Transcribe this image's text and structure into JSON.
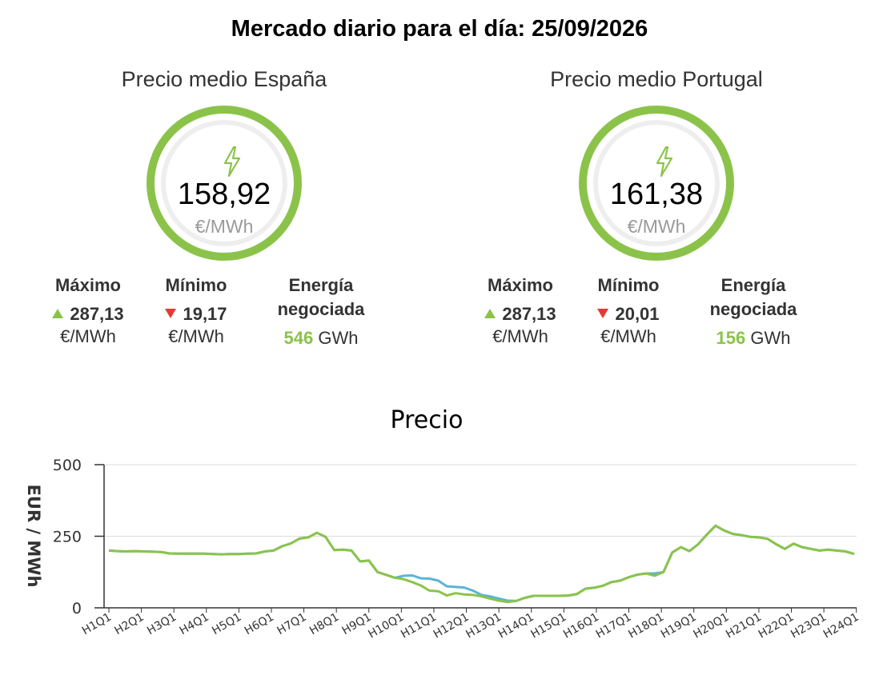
{
  "header": {
    "title": "Mercado diario para el día: 25/09/2026"
  },
  "spain": {
    "title": "Precio medio España",
    "price": "158,92",
    "unit": "€/MWh",
    "max_label": "Máximo",
    "max_value": "287,13",
    "max_unit": "€/MWh",
    "min_label": "Mínimo",
    "min_value": "19,17",
    "min_unit": "€/MWh",
    "energy_label": "Energía negociada",
    "energy_value": "546",
    "energy_unit": "GWh"
  },
  "portugal": {
    "title": "Precio medio Portugal",
    "price": "161,38",
    "unit": "€/MWh",
    "max_label": "Máximo",
    "max_value": "287,13",
    "max_unit": "€/MWh",
    "min_label": "Mínimo",
    "min_value": "20,01",
    "min_unit": "€/MWh",
    "energy_label": "Energía negociada",
    "energy_value": "156",
    "energy_unit": "GWh"
  },
  "colors": {
    "accent": "#8bc34a",
    "down": "#e53935",
    "spain_line": "#5ab4d6",
    "portugal_line": "#8bc34a"
  },
  "chart_data": {
    "type": "line",
    "title": "Precio",
    "xlabel": "",
    "ylabel": "EUR / MWh",
    "ylim": [
      0,
      500
    ],
    "yticks": [
      0,
      250,
      500
    ],
    "grid": true,
    "tick_labels": [
      "H1Q1",
      "H2Q1",
      "H3Q1",
      "H4Q1",
      "H5Q1",
      "H6Q1",
      "H7Q1",
      "H8Q1",
      "H9Q1",
      "H10Q1",
      "H11Q1",
      "H12Q1",
      "H13Q1",
      "H14Q1",
      "H15Q1",
      "H16Q1",
      "H17Q1",
      "H18Q1",
      "H19Q1",
      "H20Q1",
      "H21Q1",
      "H22Q1",
      "H23Q1",
      "H24Q1"
    ],
    "series": [
      {
        "values": [
          200,
          198,
          197,
          198,
          197,
          196,
          195,
          190,
          189,
          189,
          189,
          189,
          188,
          187,
          188,
          188,
          189,
          190,
          197,
          200,
          215,
          225,
          242,
          246,
          262,
          248,
          202,
          203,
          200,
          162,
          165,
          125,
          115,
          105,
          112,
          113,
          103,
          102,
          95,
          75,
          73,
          71,
          60,
          45,
          40,
          32,
          25,
          24,
          35,
          42,
          42,
          42,
          42,
          43,
          48,
          67,
          70,
          77,
          90,
          95,
          107,
          116,
          120,
          120,
          125,
          193,
          212,
          198,
          222,
          256,
          287,
          270,
          258,
          254,
          248,
          246,
          241,
          222,
          206,
          224,
          212,
          206,
          200,
          203,
          200,
          197,
          188
        ]
      },
      {
        "values": [
          200,
          198,
          197,
          198,
          197,
          196,
          195,
          190,
          189,
          189,
          189,
          189,
          188,
          187,
          188,
          188,
          189,
          190,
          197,
          200,
          215,
          225,
          242,
          246,
          262,
          248,
          202,
          203,
          200,
          162,
          165,
          125,
          115,
          105,
          100,
          90,
          78,
          60,
          58,
          43,
          51,
          47,
          45,
          40,
          32,
          25,
          20,
          24,
          35,
          42,
          42,
          42,
          42,
          43,
          48,
          67,
          70,
          77,
          90,
          95,
          107,
          116,
          120,
          112,
          125,
          193,
          212,
          198,
          222,
          256,
          287,
          270,
          258,
          254,
          248,
          246,
          241,
          222,
          206,
          224,
          212,
          206,
          200,
          203,
          200,
          197,
          188
        ]
      }
    ]
  }
}
